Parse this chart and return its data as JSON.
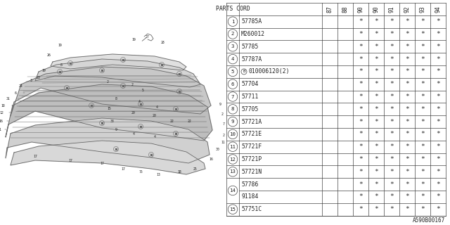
{
  "diagram_code": "A590B00167",
  "col_headers": [
    "87",
    "88",
    "90",
    "90",
    "91",
    "92",
    "93",
    "94"
  ],
  "row_entries": [
    {
      "num": "1",
      "part": "57785A",
      "has_b": false,
      "part2": null,
      "marks": [
        0,
        0,
        1,
        1,
        1,
        1,
        1,
        1
      ]
    },
    {
      "num": "2",
      "part": "M260012",
      "has_b": false,
      "part2": null,
      "marks": [
        0,
        0,
        1,
        1,
        1,
        1,
        1,
        1
      ]
    },
    {
      "num": "3",
      "part": "57785",
      "has_b": false,
      "part2": null,
      "marks": [
        0,
        0,
        1,
        1,
        1,
        1,
        1,
        1
      ]
    },
    {
      "num": "4",
      "part": "57787A",
      "has_b": false,
      "part2": null,
      "marks": [
        0,
        0,
        1,
        1,
        1,
        1,
        1,
        1
      ]
    },
    {
      "num": "5",
      "part": "010006120(2)",
      "has_b": true,
      "part2": null,
      "marks": [
        0,
        0,
        1,
        1,
        1,
        1,
        1,
        1
      ]
    },
    {
      "num": "6",
      "part": "57704",
      "has_b": false,
      "part2": null,
      "marks": [
        0,
        0,
        1,
        1,
        1,
        1,
        1,
        1
      ]
    },
    {
      "num": "7",
      "part": "57711",
      "has_b": false,
      "part2": null,
      "marks": [
        0,
        0,
        1,
        1,
        1,
        1,
        1,
        1
      ]
    },
    {
      "num": "8",
      "part": "57705",
      "has_b": false,
      "part2": null,
      "marks": [
        0,
        0,
        1,
        1,
        1,
        1,
        1,
        1
      ]
    },
    {
      "num": "9",
      "part": "57721A",
      "has_b": false,
      "part2": null,
      "marks": [
        0,
        0,
        1,
        1,
        1,
        1,
        1,
        1
      ]
    },
    {
      "num": "10",
      "part": "57721E",
      "has_b": false,
      "part2": null,
      "marks": [
        0,
        0,
        1,
        1,
        1,
        1,
        1,
        1
      ]
    },
    {
      "num": "11",
      "part": "57721F",
      "has_b": false,
      "part2": null,
      "marks": [
        0,
        0,
        1,
        1,
        1,
        1,
        1,
        1
      ]
    },
    {
      "num": "12",
      "part": "57721P",
      "has_b": false,
      "part2": null,
      "marks": [
        0,
        0,
        1,
        1,
        1,
        1,
        1,
        1
      ]
    },
    {
      "num": "13",
      "part": "57721N",
      "has_b": false,
      "part2": null,
      "marks": [
        0,
        0,
        1,
        1,
        1,
        1,
        1,
        1
      ]
    },
    {
      "num": "14",
      "part": "57786",
      "has_b": false,
      "part2": "91184",
      "marks": [
        0,
        0,
        1,
        1,
        1,
        1,
        1,
        1
      ]
    },
    {
      "num": "15",
      "part": "57751C",
      "has_b": false,
      "part2": null,
      "marks": [
        0,
        0,
        1,
        1,
        1,
        1,
        1,
        1
      ]
    }
  ],
  "bg_color": "#ffffff",
  "line_color": "#444444",
  "text_color": "#222222"
}
